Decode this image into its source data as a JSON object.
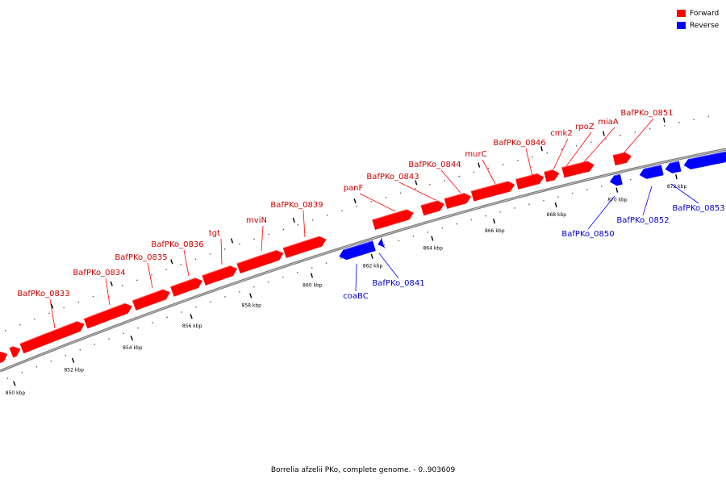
{
  "legend": [
    {
      "label": "Forward",
      "color": "#ff0000"
    },
    {
      "label": "Reverse",
      "color": "#0000ff"
    }
  ],
  "caption": "Borrelia afzelii PKo, complete genome. - 0..903609",
  "colors": {
    "forward": "#ff0000",
    "reverse": "#0000ff",
    "backbone": "#999999",
    "label_forward": "#cc0000",
    "label_reverse": "#0000cc"
  },
  "ticks": [
    "850 kbp",
    "852 kbp",
    "854 kbp",
    "856 kbp",
    "858 kbp",
    "860 kbp",
    "862 kbp",
    "864 kbp",
    "866 kbp",
    "868 kbp",
    "870 kbp",
    "872 kbp"
  ],
  "genes": {
    "forward": [
      "BafPKo_0833",
      "BafPKo_0834",
      "BafPKo_0835",
      "BafPKo_0836",
      "tgt",
      "mviN",
      "BafPKo_0839",
      "panF",
      "BafPKo_0843",
      "BafPKo_0844",
      "murC",
      "BafPKo_0846",
      "cmk2",
      "rpoZ",
      "miaA",
      "BafPKo_0851"
    ],
    "reverse": [
      "coaBC",
      "BafPKo_0841",
      "BafPKo_0850",
      "BafPKo_0852",
      "BafPKo_0853"
    ]
  }
}
